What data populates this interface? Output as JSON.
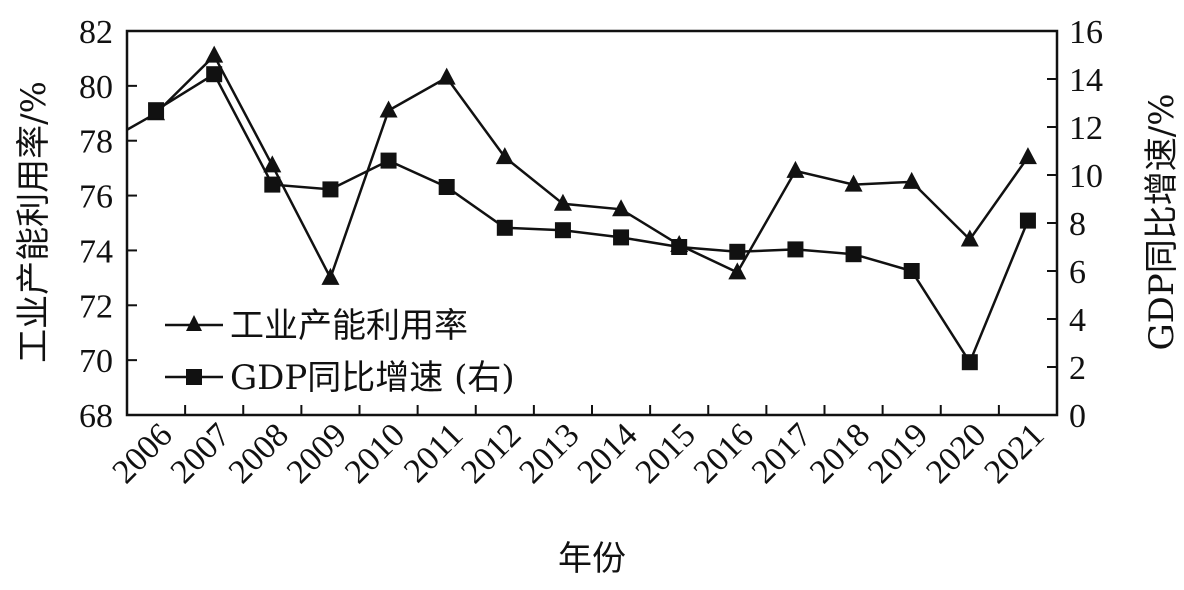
{
  "chart_data": {
    "type": "line",
    "title": "",
    "xlabel": "年份",
    "ylabel": "工业产能利用率/%",
    "y2label": "GDP同比增速/%",
    "categories": [
      "2006",
      "2007",
      "2008",
      "2009",
      "2010",
      "2011",
      "2012",
      "2013",
      "2014",
      "2015",
      "2016",
      "2017",
      "2018",
      "2019",
      "2020",
      "2021"
    ],
    "ylim": [
      68,
      82
    ],
    "y_ticks": [
      68,
      70,
      72,
      74,
      76,
      78,
      80,
      82
    ],
    "y2lim": [
      0,
      16
    ],
    "y2_ticks": [
      0,
      2,
      4,
      6,
      8,
      10,
      12,
      14,
      16
    ],
    "series": [
      {
        "name": "工业产能利用率",
        "axis": "left",
        "marker": "triangle",
        "leading_value": 78.4,
        "values": [
          79.0,
          81.1,
          77.1,
          73.0,
          79.1,
          80.3,
          77.4,
          75.7,
          75.5,
          74.2,
          73.2,
          76.9,
          76.4,
          76.5,
          74.4,
          77.4
        ]
      },
      {
        "name": "GDP同比增速 (右)",
        "axis": "right",
        "marker": "square",
        "values": [
          12.7,
          14.2,
          9.6,
          9.4,
          10.6,
          9.5,
          7.8,
          7.7,
          7.4,
          7.0,
          6.8,
          6.9,
          6.7,
          6.0,
          2.2,
          8.1
        ]
      }
    ],
    "legend": {
      "position": "bottom-left"
    },
    "grid": false,
    "colors": {
      "line": "#111111",
      "background": "#ffffff"
    }
  }
}
